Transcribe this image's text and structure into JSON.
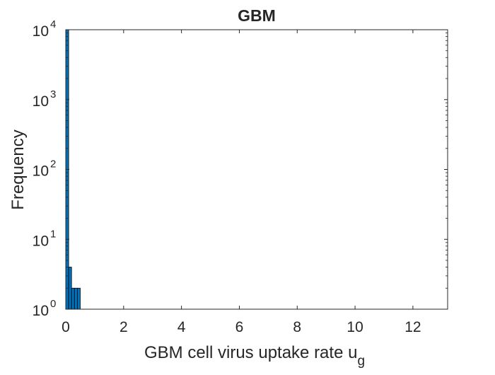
{
  "chart_data": {
    "type": "bar",
    "title": "GBM",
    "xlabel": "GBM cell virus uptake rate u",
    "xlabel_subscript": "g",
    "ylabel": "Frequency",
    "yscale": "log",
    "xlim": [
      0,
      13.2
    ],
    "ylim": [
      1,
      10000
    ],
    "xticks": [
      0,
      2,
      4,
      6,
      8,
      10,
      12
    ],
    "yticks": [
      {
        "value": 1,
        "base": "10",
        "exp": "0"
      },
      {
        "value": 10,
        "base": "10",
        "exp": "1"
      },
      {
        "value": 100,
        "base": "10",
        "exp": "2"
      },
      {
        "value": 1000,
        "base": "10",
        "exp": "3"
      },
      {
        "value": 10000,
        "base": "10",
        "exp": "4"
      }
    ],
    "grid": false,
    "bar_color": "#0072BD",
    "bar_edge_color": "#000000",
    "bins": [
      {
        "x0": 0.0,
        "x1": 0.1,
        "value": 10000
      },
      {
        "x0": 0.1,
        "x1": 0.2,
        "value": 4
      },
      {
        "x0": 0.2,
        "x1": 0.3,
        "value": 2
      },
      {
        "x0": 0.3,
        "x1": 0.4,
        "value": 2
      },
      {
        "x0": 0.4,
        "x1": 0.5,
        "value": 2
      }
    ]
  }
}
